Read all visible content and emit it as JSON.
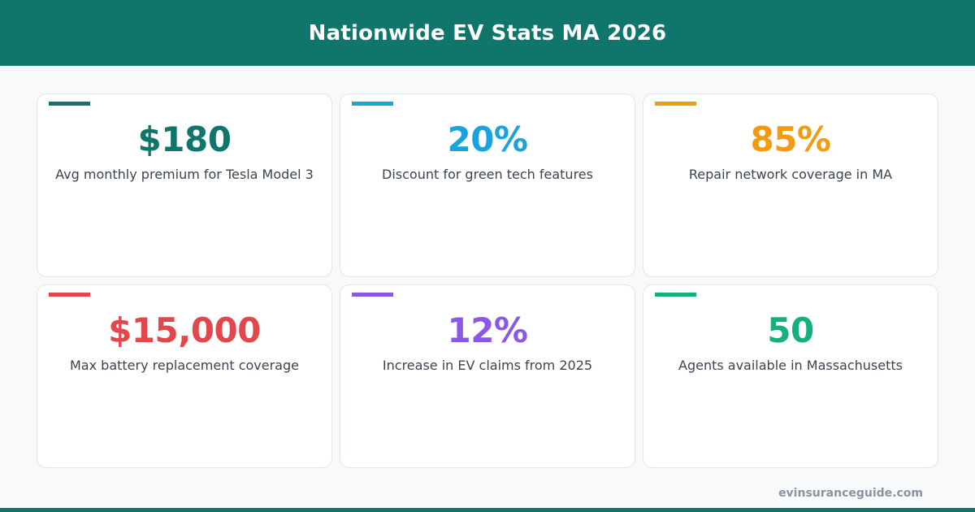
{
  "header": {
    "title": "Nationwide EV Stats MA 2026"
  },
  "stats": [
    {
      "value": "$180",
      "label": "Avg monthly premium for Tesla Model 3",
      "color": "#10766c"
    },
    {
      "value": "20%",
      "label": "Discount for green tech features",
      "color": "#19a3dc"
    },
    {
      "value": "85%",
      "label": "Repair network coverage in MA",
      "color": "#f09b10"
    },
    {
      "value": "$15,000",
      "label": "Max battery replacement coverage",
      "color": "#e2474b"
    },
    {
      "value": "12%",
      "label": "Increase in EV claims from 2025",
      "color": "#8a58e6"
    },
    {
      "value": "50",
      "label": "Agents available in Massachusetts",
      "color": "#14b07f"
    }
  ],
  "footer": {
    "domain": "evinsuranceguide.com"
  },
  "colors": {
    "brand": "#10766c",
    "background": "#f8f9fb",
    "label_text": "#3c4350",
    "footer_text": "#8a949e"
  }
}
